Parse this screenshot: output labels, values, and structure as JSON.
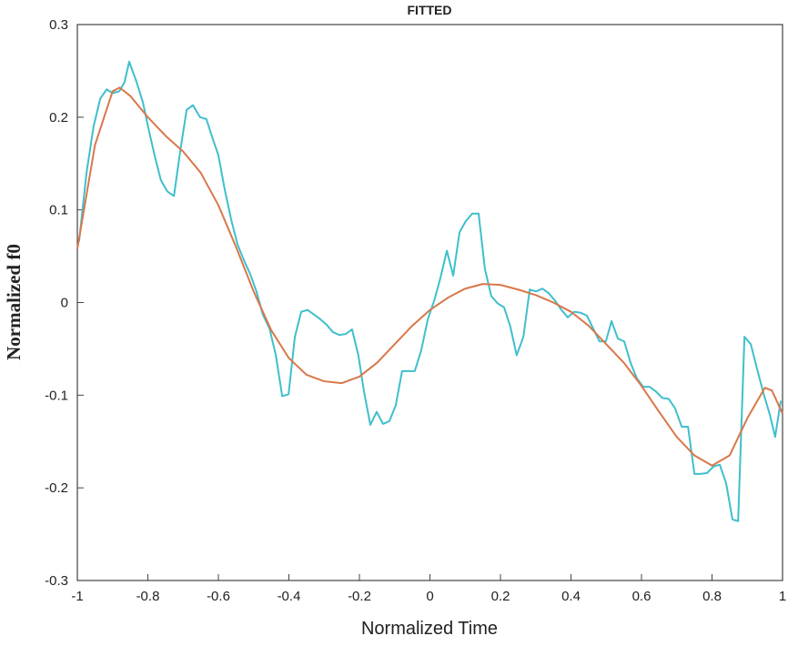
{
  "chart_data": {
    "type": "line",
    "title": "FITTED",
    "x_label": "Normalized Time",
    "y_label": "Normalized f0",
    "xlim": [
      -1,
      1
    ],
    "xticks": [
      -1,
      -0.8,
      -0.6,
      -0.4,
      -0.2,
      0,
      0.2,
      0.4,
      0.6,
      0.8,
      1
    ],
    "ylim": [
      -0.3,
      0.3
    ],
    "yticks": [
      -0.3,
      -0.2,
      -0.1,
      0,
      0.1,
      0.2,
      0.3
    ],
    "series": [
      {
        "color": "#3fbfcb",
        "x": [
          -0.995,
          -0.974,
          -0.954,
          -0.935,
          -0.917,
          -0.9,
          -0.881,
          -0.866,
          -0.853,
          -0.832,
          -0.814,
          -0.799,
          -0.781,
          -0.763,
          -0.745,
          -0.726,
          -0.708,
          -0.69,
          -0.672,
          -0.652,
          -0.634,
          -0.618,
          -0.6,
          -0.582,
          -0.564,
          -0.546,
          -0.528,
          -0.51,
          -0.492,
          -0.474,
          -0.455,
          -0.437,
          -0.419,
          -0.401,
          -0.383,
          -0.365,
          -0.347,
          -0.329,
          -0.311,
          -0.293,
          -0.275,
          -0.257,
          -0.239,
          -0.221,
          -0.203,
          -0.187,
          -0.169,
          -0.151,
          -0.133,
          -0.115,
          -0.097,
          -0.079,
          -0.061,
          -0.043,
          -0.025,
          -0.006,
          0.012,
          0.03,
          0.048,
          0.066,
          0.084,
          0.102,
          0.12,
          0.138,
          0.156,
          0.174,
          0.192,
          0.21,
          0.228,
          0.246,
          0.265,
          0.283,
          0.301,
          0.319,
          0.337,
          0.355,
          0.373,
          0.391,
          0.409,
          0.427,
          0.445,
          0.463,
          0.481,
          0.499,
          0.515,
          0.533,
          0.551,
          0.569,
          0.587,
          0.605,
          0.623,
          0.641,
          0.659,
          0.677,
          0.695,
          0.714,
          0.732,
          0.75,
          0.768,
          0.786,
          0.804,
          0.822,
          0.84,
          0.858,
          0.874,
          0.892,
          0.91,
          0.928,
          0.946,
          0.964,
          0.979,
          0.995
        ],
        "values": [
          0.066,
          0.14,
          0.19,
          0.22,
          0.23,
          0.226,
          0.228,
          0.238,
          0.26,
          0.238,
          0.216,
          0.189,
          0.159,
          0.132,
          0.12,
          0.115,
          0.164,
          0.208,
          0.213,
          0.2,
          0.198,
          0.179,
          0.159,
          0.122,
          0.09,
          0.063,
          0.046,
          0.031,
          0.012,
          -0.013,
          -0.028,
          -0.057,
          -0.101,
          -0.099,
          -0.037,
          -0.01,
          -0.008,
          -0.013,
          -0.018,
          -0.024,
          -0.032,
          -0.035,
          -0.034,
          -0.029,
          -0.057,
          -0.096,
          -0.132,
          -0.118,
          -0.131,
          -0.128,
          -0.111,
          -0.074,
          -0.074,
          -0.074,
          -0.052,
          -0.018,
          0.002,
          0.027,
          0.056,
          0.029,
          0.076,
          0.088,
          0.096,
          0.096,
          0.036,
          0.007,
          -0.001,
          -0.005,
          -0.026,
          -0.057,
          -0.037,
          0.014,
          0.012,
          0.015,
          0.01,
          0.002,
          -0.008,
          -0.016,
          -0.01,
          -0.011,
          -0.014,
          -0.028,
          -0.042,
          -0.042,
          -0.02,
          -0.039,
          -0.042,
          -0.065,
          -0.082,
          -0.091,
          -0.091,
          -0.096,
          -0.103,
          -0.104,
          -0.114,
          -0.134,
          -0.134,
          -0.185,
          -0.185,
          -0.184,
          -0.177,
          -0.175,
          -0.195,
          -0.234,
          -0.236,
          -0.037,
          -0.045,
          -0.072,
          -0.098,
          -0.121,
          -0.145,
          -0.106
        ]
      },
      {
        "color": "#d9774a",
        "x": [
          -1,
          -0.95,
          -0.9,
          -0.88,
          -0.85,
          -0.8,
          -0.75,
          -0.7,
          -0.65,
          -0.6,
          -0.55,
          -0.5,
          -0.45,
          -0.4,
          -0.35,
          -0.3,
          -0.25,
          -0.2,
          -0.15,
          -0.1,
          -0.05,
          0,
          0.05,
          0.1,
          0.15,
          0.2,
          0.25,
          0.3,
          0.35,
          0.4,
          0.45,
          0.5,
          0.55,
          0.6,
          0.65,
          0.7,
          0.75,
          0.8,
          0.85,
          0.9,
          0.95,
          0.97,
          1
        ],
        "values": [
          0.058,
          0.17,
          0.228,
          0.232,
          0.223,
          0.2,
          0.18,
          0.163,
          0.14,
          0.105,
          0.06,
          0.012,
          -0.03,
          -0.06,
          -0.078,
          -0.085,
          -0.087,
          -0.08,
          -0.065,
          -0.045,
          -0.025,
          -0.008,
          0.005,
          0.015,
          0.02,
          0.019,
          0.014,
          0.008,
          0.0,
          -0.01,
          -0.025,
          -0.045,
          -0.065,
          -0.09,
          -0.118,
          -0.145,
          -0.165,
          -0.176,
          -0.165,
          -0.125,
          -0.092,
          -0.095,
          -0.12
        ]
      }
    ]
  }
}
